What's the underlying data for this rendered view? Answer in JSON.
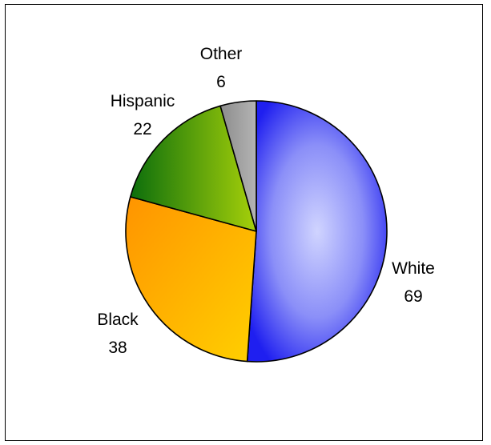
{
  "chart_data": {
    "type": "pie",
    "title": "",
    "slices": [
      {
        "label": "White",
        "value": 69,
        "color": "#4a4af2"
      },
      {
        "label": "Black",
        "value": 38,
        "color": "#ffa500"
      },
      {
        "label": "Hispanic",
        "value": 22,
        "color": "#5aa80d"
      },
      {
        "label": "Other",
        "value": 6,
        "color": "#9a9a9a"
      }
    ],
    "legend": "none",
    "data_labels": "category and value, outside slices"
  }
}
